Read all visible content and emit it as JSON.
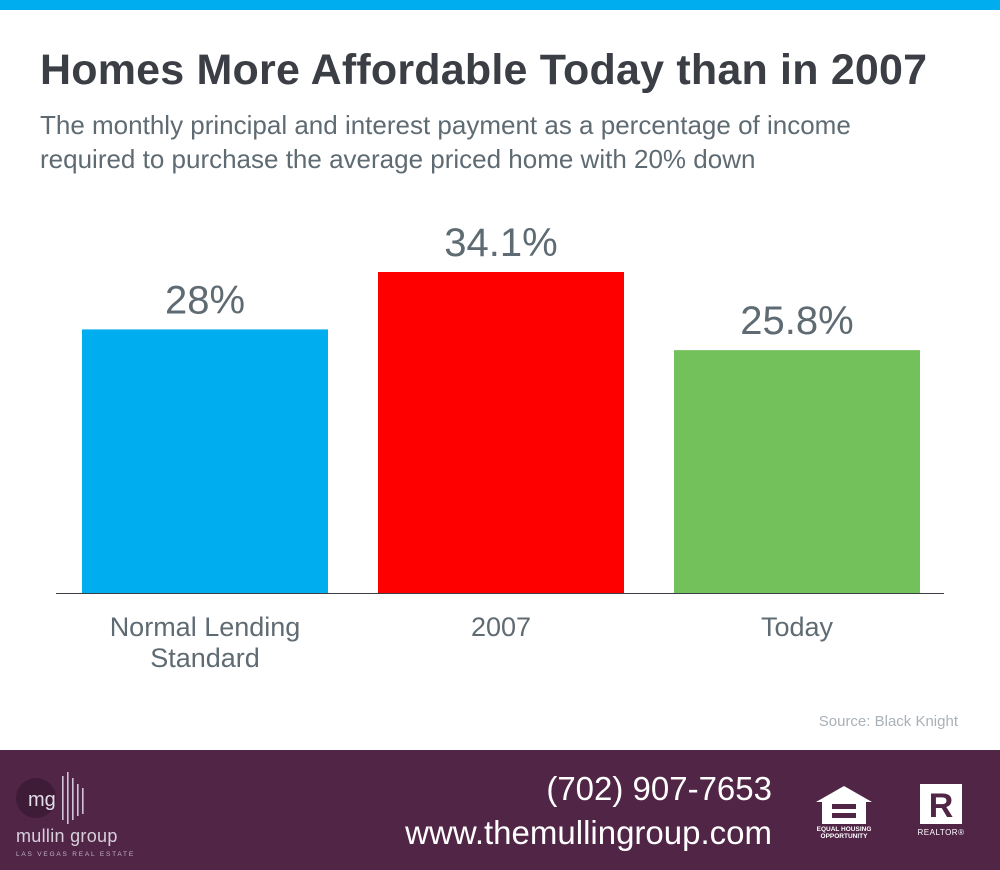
{
  "colors": {
    "top_bar": "#00aeef",
    "footer_bg": "#512546",
    "title": "#3b3f45",
    "label_text": "#5f6b73",
    "axis": "#3b3f45"
  },
  "header": {
    "title": "Homes More Affordable Today than in 2007",
    "subtitle_lines": [
      "The monthly principal and interest payment as a percentage of income",
      "required to purchase the average priced home with 20% down"
    ]
  },
  "chart_data": {
    "type": "bar",
    "title": "Homes More Affordable Today than in 2007",
    "subtitle": "The monthly principal and interest payment as a percentage of income required to purchase the average priced home with 20% down",
    "categories": [
      [
        "Normal Lending",
        "Standard"
      ],
      [
        "2007"
      ],
      [
        "Today"
      ]
    ],
    "values": [
      28,
      34.1,
      25.8
    ],
    "value_labels": [
      "28%",
      "34.1%",
      "25.8%"
    ],
    "bar_colors": [
      "#00aeef",
      "#ff0000",
      "#72c15a"
    ],
    "xlabel": "",
    "ylabel": "",
    "ylim": [
      0,
      34.1
    ],
    "grid": false,
    "legend": "none"
  },
  "source": "Source: Black Knight",
  "footer": {
    "logo_mark": "mg",
    "logo_name": "mullin group",
    "logo_tagline": "LAS VEGAS REAL ESTATE",
    "phone": "(702) 907-7653",
    "website": "www.themullingroup.com",
    "eho_label": [
      "EQUAL HOUSING",
      "OPPORTUNITY"
    ],
    "realtor_label": "REALTOR®",
    "eho_icon": "equal-housing-icon",
    "realtor_icon": "realtor-icon"
  }
}
